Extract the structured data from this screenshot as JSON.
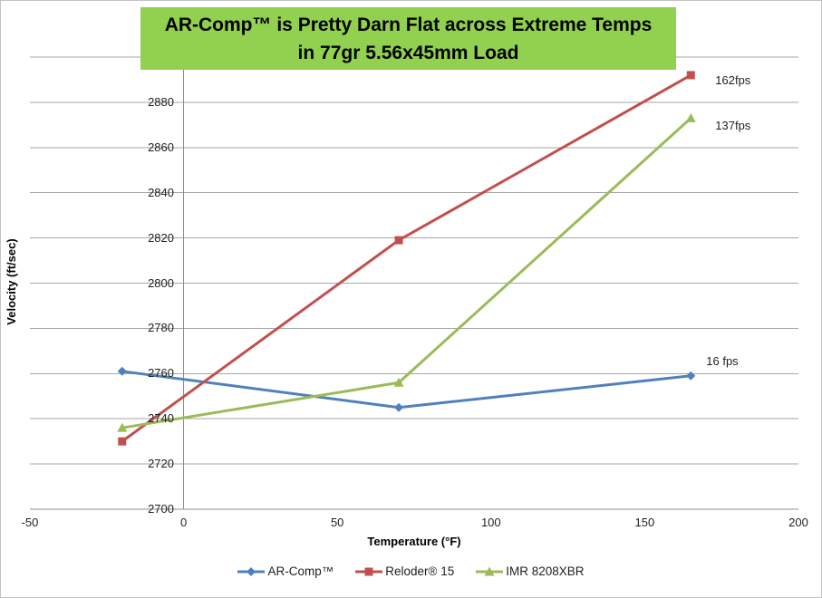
{
  "chart": {
    "title_line1": "AR-Comp™ is Pretty Darn Flat across Extreme Temps",
    "title_line2": "in 77gr 5.56x45mm Load",
    "title_bg_color": "#92D050"
  },
  "chart_data": {
    "type": "line",
    "title": "AR-Comp™ is Pretty Darn Flat across Extreme Temps in 77gr 5.56x45mm Load",
    "xlabel": "Temperature (°F)",
    "ylabel": "Velocity (ft/sec)",
    "x": [
      -20,
      70,
      165
    ],
    "series": [
      {
        "name": "AR-Comp™",
        "values": [
          2761,
          2745,
          2759
        ],
        "color": "#4F81BD",
        "marker": "diamond",
        "annotation": {
          "text": "16 fps",
          "dx": 17,
          "dy": -24
        }
      },
      {
        "name": "Reloder® 15",
        "values": [
          2730,
          2819,
          2892
        ],
        "color": "#C0504D",
        "marker": "square",
        "annotation": {
          "text": "162fps",
          "dx": 27,
          "dy": -2
        }
      },
      {
        "name": "IMR 8208XBR",
        "values": [
          2736,
          2756,
          2873
        ],
        "color": "#9BBB59",
        "marker": "triangle",
        "annotation": {
          "text": "137fps",
          "dx": 27,
          "dy": 1
        }
      }
    ],
    "xlim": [
      -50,
      200
    ],
    "ylim": [
      2700,
      2900
    ],
    "x_ticks": [
      -50,
      0,
      50,
      100,
      150,
      200
    ],
    "y_ticks": [
      2700,
      2720,
      2740,
      2760,
      2780,
      2800,
      2820,
      2840,
      2860,
      2880
    ],
    "y_grid_step": 20,
    "y_axis_at_x": 0,
    "grid": "horizontal",
    "legend_position": "bottom",
    "colors": {
      "gridline": "#A6A6A6",
      "axis": "#8E8E8E",
      "text": "#1f1f1f"
    }
  }
}
